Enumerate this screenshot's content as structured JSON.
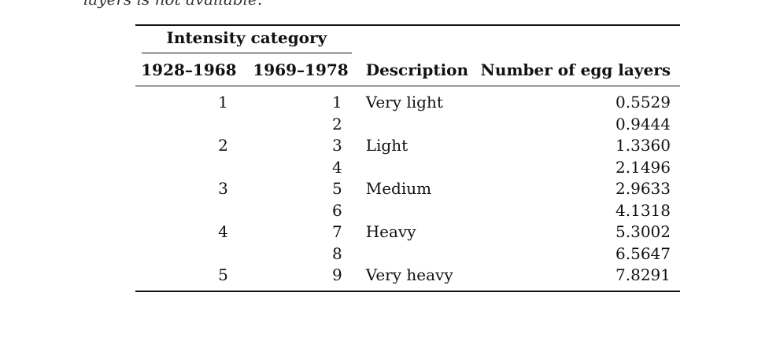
{
  "preceding_text": "layers is not available.",
  "table": {
    "group_header": "Intensity category",
    "columns": [
      "1928–1968",
      "1969–1978",
      "Description",
      "Number of egg layers"
    ],
    "rows": [
      {
        "c1": "1",
        "c2": "1",
        "desc": "Very light",
        "value": "0.5529"
      },
      {
        "c1": "",
        "c2": "2",
        "desc": "",
        "value": "0.9444"
      },
      {
        "c1": "2",
        "c2": "3",
        "desc": "Light",
        "value": "1.3360"
      },
      {
        "c1": "",
        "c2": "4",
        "desc": "",
        "value": "2.1496"
      },
      {
        "c1": "3",
        "c2": "5",
        "desc": "Medium",
        "value": "2.9633"
      },
      {
        "c1": "",
        "c2": "6",
        "desc": "",
        "value": "4.1318"
      },
      {
        "c1": "4",
        "c2": "7",
        "desc": "Heavy",
        "value": "5.3002"
      },
      {
        "c1": "",
        "c2": "8",
        "desc": "",
        "value": "6.5647"
      },
      {
        "c1": "5",
        "c2": "9",
        "desc": "Very heavy",
        "value": "7.8291"
      }
    ]
  }
}
